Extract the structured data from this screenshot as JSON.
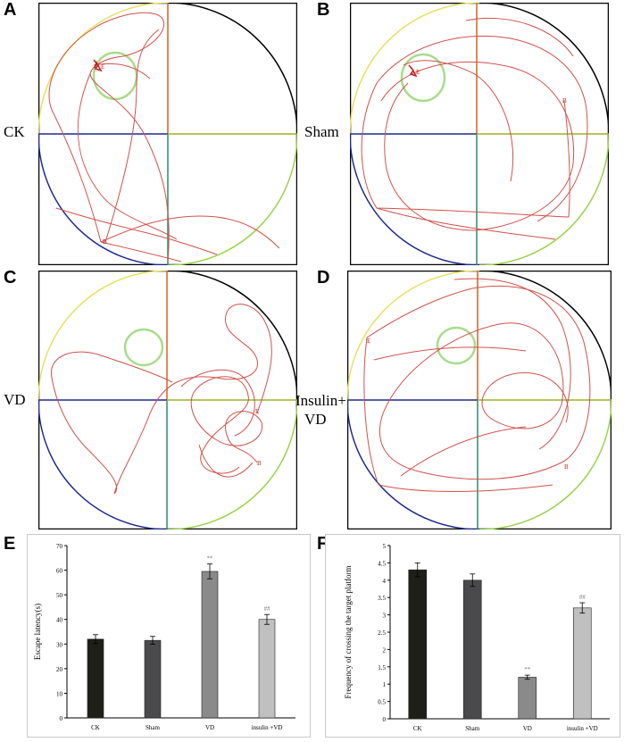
{
  "panels": {
    "a": {
      "letter": "A",
      "label": "CK"
    },
    "b": {
      "letter": "B",
      "label": "Sham"
    },
    "c": {
      "letter": "C",
      "label": "VD"
    },
    "d": {
      "letter": "D",
      "label_line1": "Insulin+",
      "label_line2": "VD"
    },
    "e": {
      "letter": "E"
    },
    "f": {
      "letter": "F"
    }
  },
  "track_markers": {
    "start": "B",
    "end": "E"
  },
  "colors": {
    "track": "#d0524c",
    "platform": "#a8dc8c",
    "quad_top_right": "#d9601e",
    "quad_top_left": "#1e2a8c",
    "quad_vertical_low": "#2c8c6c",
    "quad_horizontal_right": "#a0b020",
    "bar_ck": "#1d1f18",
    "bar_sham": "#4a494b",
    "bar_vd": "#8a8a8a",
    "bar_insulin": "#c0c0c0"
  },
  "chart_data": [
    {
      "type": "bar",
      "ylabel": "Escape latency(s)",
      "xlabel": "",
      "categories": [
        "CK",
        "Sham",
        "VD",
        "insulin +VD"
      ],
      "values": [
        32,
        31.5,
        59.5,
        40
      ],
      "errors": [
        1.8,
        1.6,
        3.0,
        2.0
      ],
      "annotations": [
        "",
        "",
        "**",
        "##"
      ],
      "ylim": [
        0,
        70
      ],
      "yticks": [
        "0",
        "10",
        "20",
        "30",
        "40",
        "50",
        "60",
        "70"
      ],
      "grid": false,
      "legend": "none"
    },
    {
      "type": "bar",
      "ylabel": "Frequency of crossing the target platform",
      "xlabel": "",
      "categories": [
        "CK",
        "Sham",
        "VD",
        "insulin +VD"
      ],
      "values": [
        4.3,
        4.0,
        1.2,
        3.2
      ],
      "errors": [
        0.2,
        0.18,
        0.06,
        0.15
      ],
      "annotations": [
        "",
        "",
        "**",
        "##"
      ],
      "ylim": [
        0,
        5
      ],
      "yticks": [
        "0",
        "0.5",
        "1",
        "1.5",
        "2",
        "2.5",
        "3",
        "3.5",
        "4",
        "4.5",
        "5"
      ],
      "grid": false,
      "legend": "none"
    }
  ]
}
